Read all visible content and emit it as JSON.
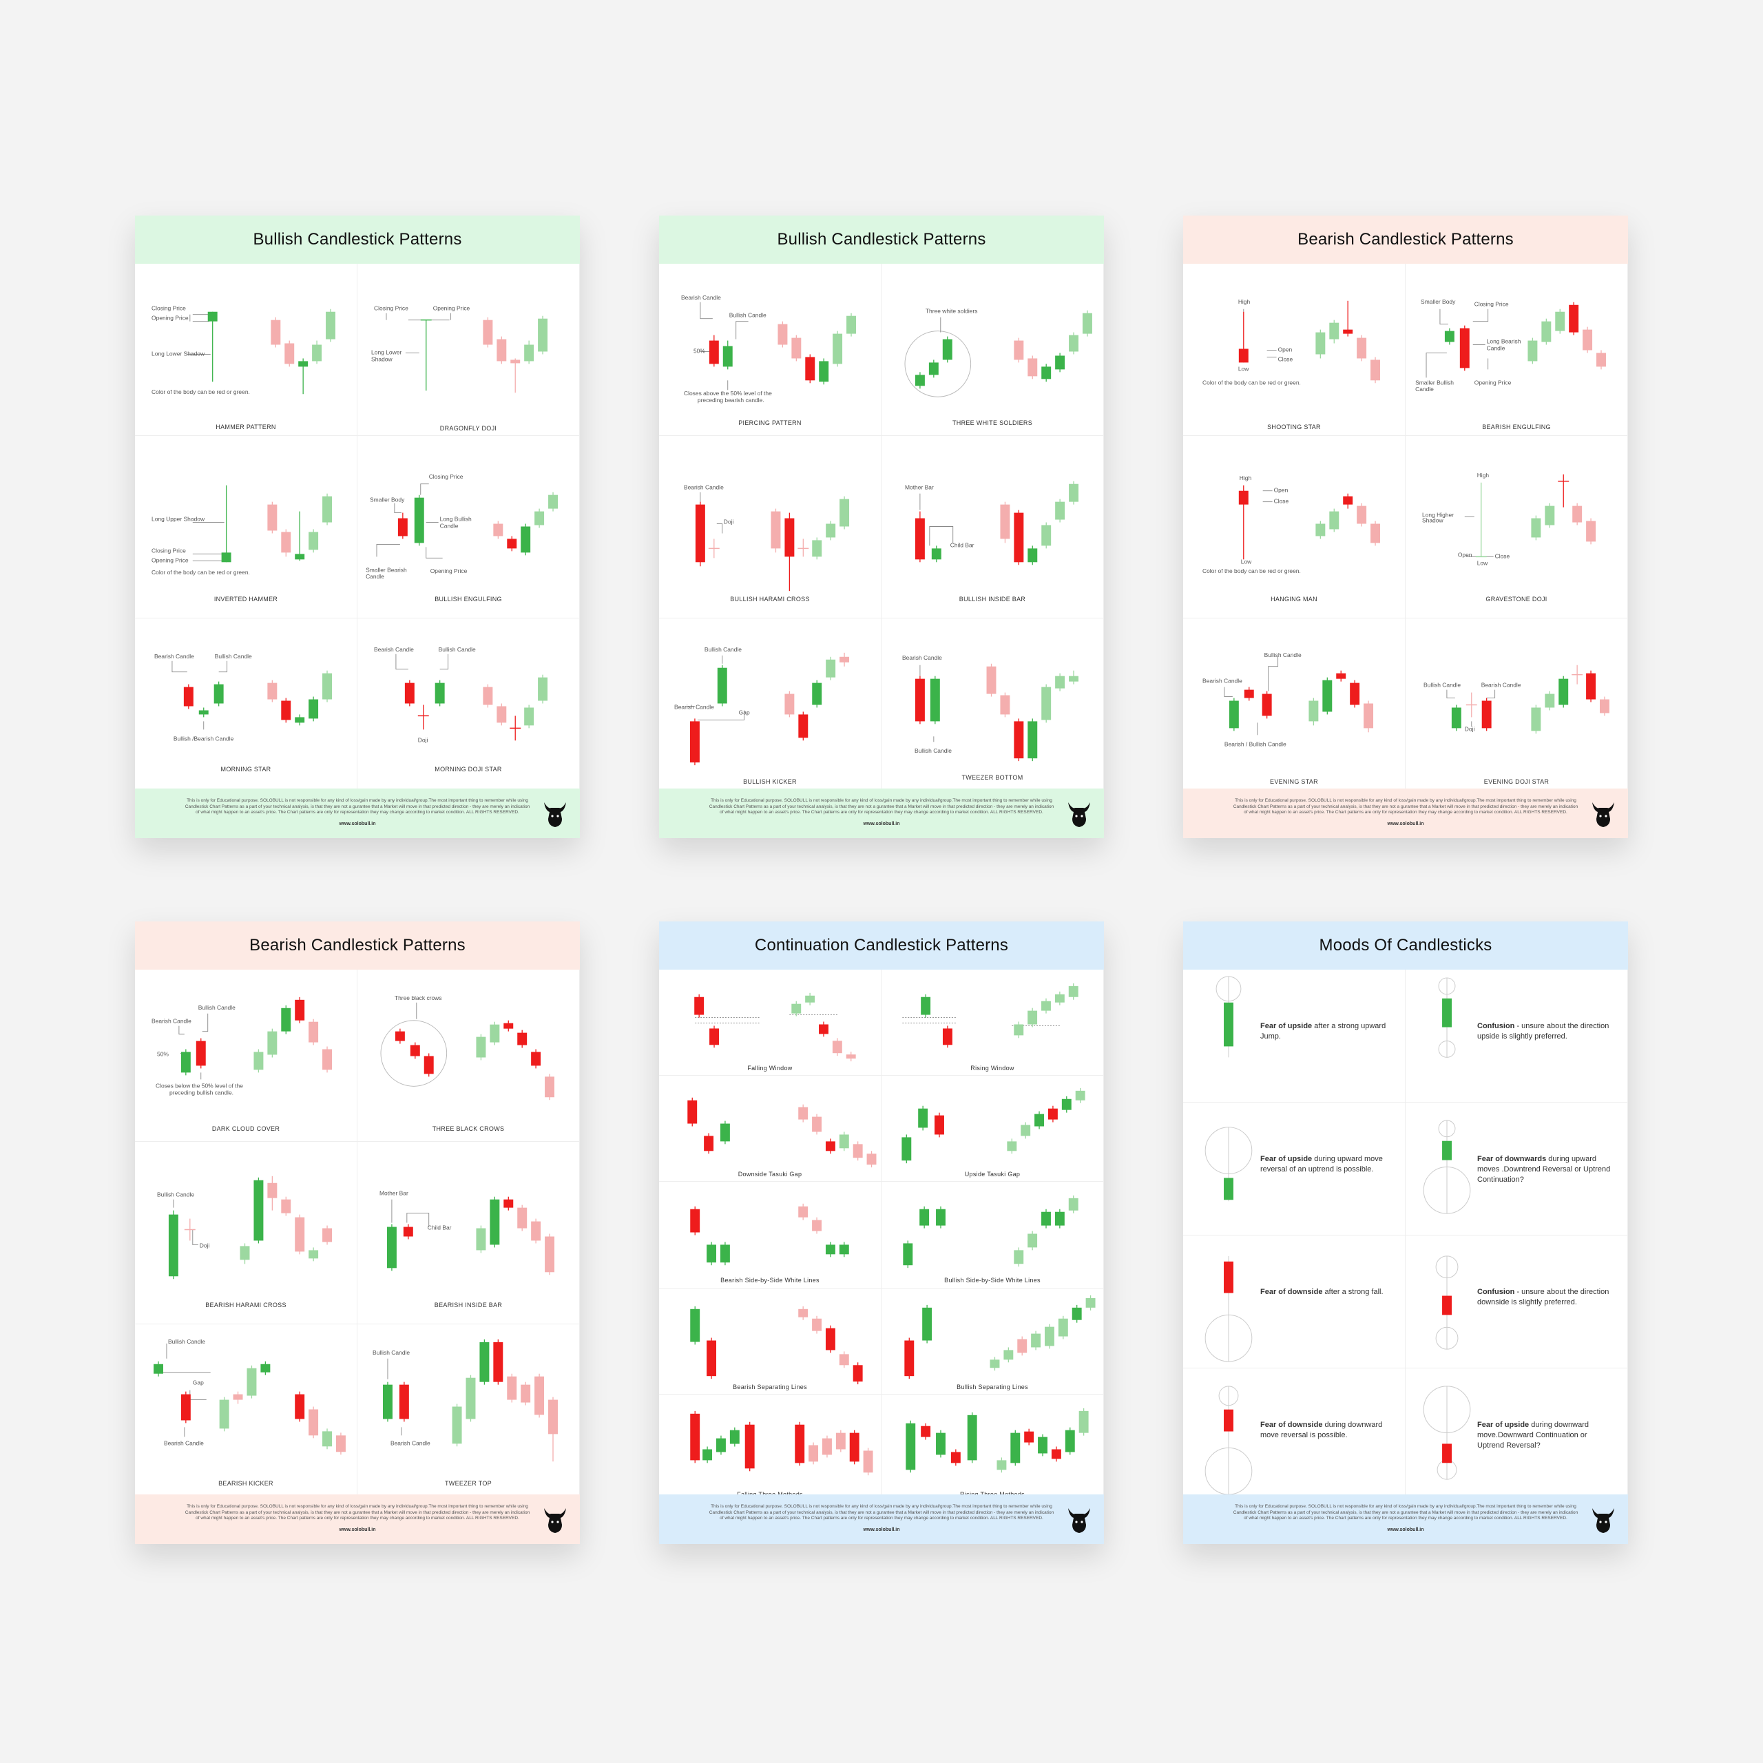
{
  "colors": {
    "green": "#3bb34a",
    "red": "#ee1c1c",
    "lightgreen": "#9cd8a0",
    "lightred": "#f4aeae",
    "green_bg": "#dcf7e2",
    "red_bg": "#fdeae4",
    "blue_bg": "#d9ecfb"
  },
  "disclaimer": "This is only for Educational purpose. SOLOBULL is not responsible for any kind of loss/gain made by any individual/group.The most important thing to remember while using Candlestick Chart Patterns as a part of your technical analysis, is that they are not a gurantee that a Market will move in that predicted direction - they are merely an indication of what might happen to an asset's price. The Chart patterns are only for representation they may change according to market condition. ALL RIGHTS RESERVED.",
  "website": "www.solobull.in",
  "logo_icon": "bull-head-icon",
  "posters": [
    {
      "title": "Bullish Candlestick Patterns",
      "cells": [
        {
          "caption": "HAMMER PATTERN",
          "labels": [
            "Closing Price",
            "Opening Price",
            "Long Lower Shadow",
            "Color of the body can be red or green."
          ]
        },
        {
          "caption": "DRAGONFLY DOJI",
          "labels": [
            "Closing Price",
            "Opening Price",
            "Long Lower",
            "Shadow"
          ]
        },
        {
          "caption": "INVERTED HAMMER",
          "labels": [
            "Long Upper Shadow",
            "Closing Price",
            "Opening Price",
            "Color of the body can be red or green."
          ]
        },
        {
          "caption": "BULLISH ENGULFING",
          "labels": [
            "Closing Price",
            "Smaller Body",
            "Long Bullish",
            "Candle",
            "Smaller Bearish",
            "Candle",
            "Opening Price"
          ]
        },
        {
          "caption": "MORNING STAR",
          "labels": [
            "Bearish Candle",
            "Bullish Candle",
            "Bullish /Bearish Candle"
          ]
        },
        {
          "caption": "MORNING DOJI STAR",
          "labels": [
            "Bearish Candle",
            "Bullish Candle",
            "Doji"
          ]
        }
      ]
    },
    {
      "title": "Bullish Candlestick Patterns",
      "cells": [
        {
          "caption": "PIERCING PATTERN",
          "labels": [
            "Bearish Candle",
            "Bullish Candle",
            "50%",
            "Closes above the 50% level of the",
            "preceding bearish candle."
          ]
        },
        {
          "caption": "THREE WHITE SOLDIERS",
          "labels": [
            "Three white soldiers"
          ]
        },
        {
          "caption": "BULLISH HARAMI CROSS",
          "labels": [
            "Bearish Candle",
            "Doji"
          ]
        },
        {
          "caption": "BULLISH INSIDE BAR",
          "labels": [
            "Mother Bar",
            "Child Bar"
          ]
        },
        {
          "caption": "BULLISH KICKER",
          "labels": [
            "Bullish Candle",
            "Bearish Candle",
            "Gap"
          ]
        },
        {
          "caption": "TWEEZER BOTTOM",
          "labels": [
            "Bearish Candle",
            "Bullish Candle"
          ]
        }
      ]
    },
    {
      "title": "Bearish Candlestick Patterns",
      "cells": [
        {
          "caption": "SHOOTING STAR",
          "labels": [
            "High",
            "Open",
            "Close",
            "Low",
            "Color of the body can be red or green."
          ]
        },
        {
          "caption": "BEARISH ENGULFING",
          "labels": [
            "Smaller Body",
            "Closing Price",
            "Long Bearish",
            "Candle",
            "Smaller Bullish",
            "Candle",
            "Opening Price"
          ]
        },
        {
          "caption": "HANGING MAN",
          "labels": [
            "High",
            "Open",
            "Close",
            "Low",
            "Color of the body can be red or green."
          ]
        },
        {
          "caption": "GRAVESTONE DOJI",
          "labels": [
            "High",
            "Long Higher",
            "Shadow",
            "Open",
            "Close",
            "Low"
          ]
        },
        {
          "caption": "EVENING STAR",
          "labels": [
            "Bearish Candle",
            "Bullish Candle",
            "Bearish / Bullish Candle"
          ]
        },
        {
          "caption": "EVENING DOJI STAR",
          "labels": [
            "Bullish Candle",
            "Bearish Candle",
            "Doji"
          ]
        }
      ]
    },
    {
      "title": "Bearish Candlestick Patterns",
      "cells": [
        {
          "caption": "DARK CLOUD COVER",
          "labels": [
            "Bearish Candle",
            "Bullish Candle",
            "50%",
            "Closes below the 50% level of the",
            "preceding bullish candle."
          ]
        },
        {
          "caption": "THREE BLACK CROWS",
          "labels": [
            "Three black crows"
          ]
        },
        {
          "caption": "BEARISH HARAMI CROSS",
          "labels": [
            "Bullish Candle",
            "Doji"
          ]
        },
        {
          "caption": "BEARISH INSIDE BAR",
          "labels": [
            "Mother Bar",
            "Child Bar"
          ]
        },
        {
          "caption": "BEARISH KICKER",
          "labels": [
            "Bullish Candle",
            "Gap",
            "Bearish Candle"
          ]
        },
        {
          "caption": "TWEEZER TOP",
          "labels": [
            "Bullish Candle",
            "Bearish Candle"
          ]
        }
      ]
    },
    {
      "title": "Continuation Candlestick Patterns",
      "cells": [
        {
          "caption": "Falling Window"
        },
        {
          "caption": "Rising Window"
        },
        {
          "caption": "Downside Tasuki Gap"
        },
        {
          "caption": "Upside Tasuki Gap"
        },
        {
          "caption": "Bearish Side-by-Side White Lines"
        },
        {
          "caption": "Bullish Side-by-Side White Lines"
        },
        {
          "caption": "Bearish Separating Lines"
        },
        {
          "caption": "Bullish Separating Lines"
        },
        {
          "caption": "Falling Three Methods"
        },
        {
          "caption": "Rising Three Methods"
        }
      ]
    },
    {
      "title": "Moods Of Candlesticks",
      "cells": [
        {
          "bold": "Fear of upside",
          "rest": " after a strong upward Jump."
        },
        {
          "bold": "Confusion",
          "rest": " - unsure about the direction upside is slightly preferred."
        },
        {
          "bold": "Fear of upside",
          "rest": " during upward move reversal of an uptrend is possible."
        },
        {
          "bold": "Fear of downwards",
          "rest": " during upward moves .Downtrend Reversal or Uptrend Continuation?"
        },
        {
          "bold": "Fear of downside",
          "rest": " after a strong fall."
        },
        {
          "bold": "Confusion",
          "rest": " - unsure about the direction downside is slightly preferred."
        },
        {
          "bold": "Fear of downside",
          "rest": " during downward move reversal is possible."
        },
        {
          "bold": "Fear of upside",
          "rest": "  during downward move.Downward Continuation  or Uptrend Reversal?"
        }
      ]
    }
  ]
}
